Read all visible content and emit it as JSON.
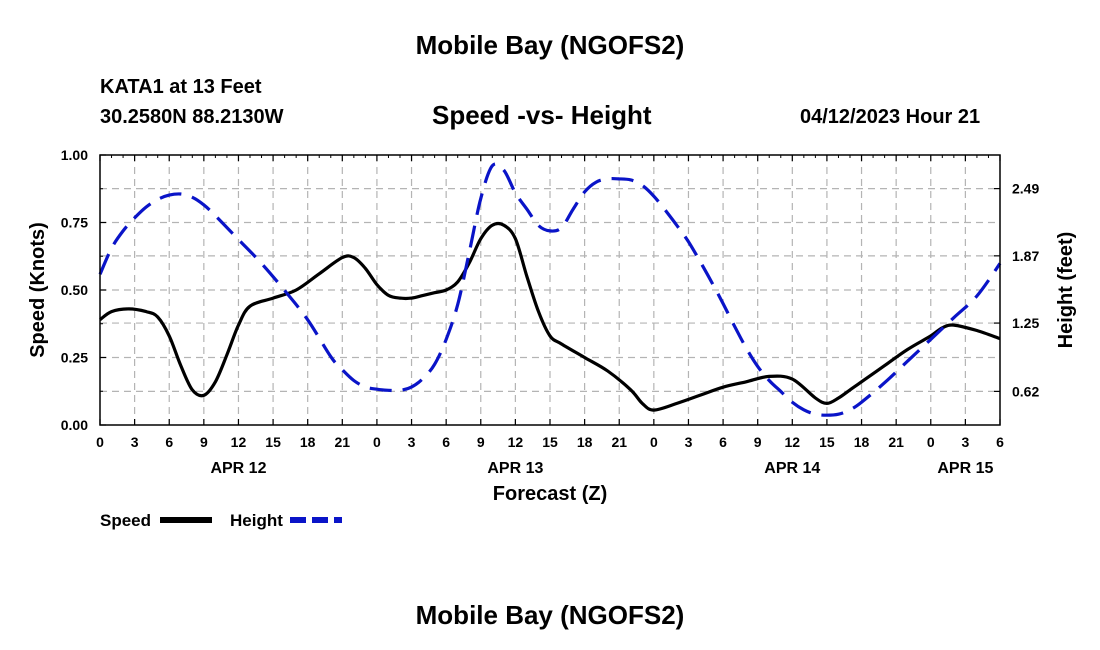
{
  "page": {
    "title": "Mobile Bay (NGOFS2)",
    "station": "KATA1 at 13 Feet",
    "coords": "30.2580N  88.2130W",
    "subtitle": "Speed -vs- Height",
    "datetime": "04/12/2023 Hour 21",
    "bottom_title": "Mobile Bay (NGOFS2)"
  },
  "chart_data": {
    "type": "line",
    "title": "Speed -vs- Height",
    "xlabel": "Forecast (Z)",
    "ylabel": "Speed (Knots)",
    "y2label": "Height (feet)",
    "xlim": [
      0,
      78
    ],
    "ylim": [
      0,
      1
    ],
    "y2lim": [
      0.31,
      2.8
    ],
    "x_ticks": [
      0,
      3,
      6,
      9,
      12,
      15,
      18,
      21,
      24,
      27,
      30,
      33,
      36,
      39,
      42,
      45,
      48,
      51,
      54,
      57,
      60,
      63,
      66,
      69,
      72,
      75,
      78
    ],
    "x_tick_labels": [
      "0",
      "3",
      "6",
      "9",
      "12",
      "15",
      "18",
      "21",
      "0",
      "3",
      "6",
      "9",
      "12",
      "15",
      "18",
      "21",
      "0",
      "3",
      "6",
      "9",
      "12",
      "15",
      "18",
      "21",
      "0",
      "3",
      "6"
    ],
    "date_labels": [
      {
        "x": 12,
        "label": "APR 12"
      },
      {
        "x": 36,
        "label": "APR 13"
      },
      {
        "x": 60,
        "label": "APR 14"
      },
      {
        "x": 75,
        "label": "APR 15"
      }
    ],
    "y_ticks": [
      0.0,
      0.25,
      0.5,
      0.75,
      1.0
    ],
    "y_tick_labels": [
      "0.00",
      "0.25",
      "0.50",
      "0.75",
      "1.00"
    ],
    "y2_ticks": [
      0.62,
      1.25,
      1.87,
      2.49
    ],
    "y2_tick_labels": [
      "0.62",
      "1.25",
      "1.87",
      "2.49"
    ],
    "grid": true,
    "legend": {
      "position": "bottom-left",
      "entries": [
        "Speed",
        "Height"
      ]
    },
    "series": [
      {
        "name": "Speed",
        "axis": "left",
        "color": "#000000",
        "dash": "solid",
        "x": [
          0,
          1,
          2.5,
          4,
          5,
          6,
          7,
          8,
          9,
          10,
          11,
          12,
          13,
          15,
          17,
          19,
          21,
          22,
          23,
          24,
          25,
          26,
          27,
          28,
          29,
          30,
          31,
          32,
          33,
          34,
          35,
          36,
          37,
          38,
          39,
          40,
          42,
          44,
          46,
          47,
          48,
          50,
          52,
          54,
          56,
          58,
          60,
          62,
          63,
          64,
          65,
          66,
          68,
          70,
          72,
          73,
          74,
          76,
          78
        ],
        "y": [
          0.39,
          0.42,
          0.43,
          0.42,
          0.4,
          0.33,
          0.22,
          0.13,
          0.11,
          0.16,
          0.26,
          0.37,
          0.44,
          0.47,
          0.5,
          0.56,
          0.62,
          0.62,
          0.58,
          0.52,
          0.48,
          0.47,
          0.47,
          0.48,
          0.49,
          0.5,
          0.53,
          0.6,
          0.69,
          0.74,
          0.74,
          0.69,
          0.55,
          0.42,
          0.33,
          0.3,
          0.25,
          0.2,
          0.13,
          0.08,
          0.055,
          0.08,
          0.11,
          0.14,
          0.16,
          0.18,
          0.17,
          0.1,
          0.08,
          0.1,
          0.13,
          0.16,
          0.22,
          0.28,
          0.33,
          0.36,
          0.37,
          0.35,
          0.32
        ]
      },
      {
        "name": "Height",
        "axis": "right",
        "color": "#0a14c8",
        "dash": "dashed",
        "x": [
          0,
          1,
          2,
          3,
          4,
          5,
          6,
          7,
          8,
          9,
          10,
          12,
          14,
          16,
          18,
          20,
          21,
          22,
          23,
          24,
          25,
          26,
          27,
          28,
          29,
          30,
          31,
          32,
          33,
          34,
          35,
          36,
          37,
          38,
          39,
          40,
          41,
          42,
          43,
          44,
          45,
          46,
          47,
          48,
          49,
          50,
          51,
          52,
          53,
          54,
          55,
          56,
          57,
          58,
          59,
          60,
          61,
          62,
          63,
          64,
          65,
          66,
          68,
          70,
          72,
          74,
          76,
          78
        ],
        "y": [
          1.7,
          1.94,
          2.1,
          2.22,
          2.32,
          2.39,
          2.43,
          2.44,
          2.41,
          2.34,
          2.24,
          2.02,
          1.8,
          1.55,
          1.28,
          0.94,
          0.82,
          0.72,
          0.66,
          0.64,
          0.63,
          0.63,
          0.66,
          0.74,
          0.87,
          1.1,
          1.42,
          1.9,
          2.4,
          2.7,
          2.66,
          2.45,
          2.3,
          2.15,
          2.1,
          2.13,
          2.3,
          2.46,
          2.55,
          2.58,
          2.58,
          2.57,
          2.52,
          2.42,
          2.29,
          2.15,
          2.0,
          1.82,
          1.63,
          1.43,
          1.22,
          1.02,
          0.85,
          0.72,
          0.62,
          0.52,
          0.45,
          0.41,
          0.4,
          0.41,
          0.45,
          0.52,
          0.7,
          0.9,
          1.1,
          1.3,
          1.5,
          1.8
        ]
      }
    ]
  }
}
